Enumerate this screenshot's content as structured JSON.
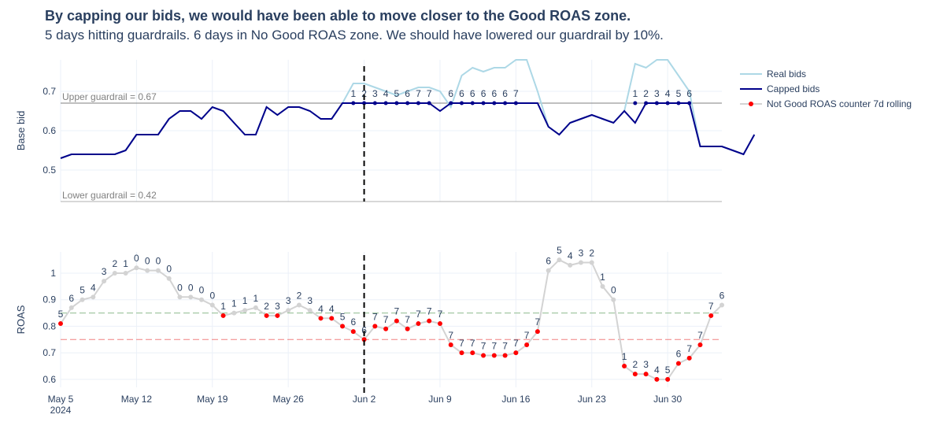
{
  "title": "By capping our bids, we would have been able to move closer to the Good ROAS zone.",
  "subtitle": "5 days hitting guardrails. 6 days in No Good ROAS zone. We should have lowered our guardrail by 10%.",
  "colors": {
    "real": "#add8e6",
    "capped": "#00008b",
    "roas_line": "#d3d3d3",
    "counter_dot": "#ff0000",
    "good_line": "#8fbc8f",
    "bad_line": "#f08080",
    "guard_line": "#808080",
    "grid": "#ebf0f8",
    "vline": "#000000"
  },
  "legend": [
    {
      "label": "Real bids",
      "kind": "real"
    },
    {
      "label": "Capped bids",
      "kind": "capped"
    },
    {
      "label": "Not Good ROAS counter 7d rolling",
      "kind": "roas"
    }
  ],
  "chart_data": [
    {
      "type": "line",
      "ylabel": "Base bid",
      "ylim": [
        0.42,
        0.78
      ],
      "yticks": [
        0.5,
        0.6,
        0.7
      ],
      "ytick_labels": [
        "0.5",
        "0.6",
        "0.7"
      ],
      "upper_guardrail": {
        "value": 0.67,
        "label": "Upper guardrail = 0.67"
      },
      "lower_guardrail": {
        "value": 0.42,
        "label": "Lower guardrail = 0.42"
      },
      "start_date": "2024-05-05",
      "series": [
        {
          "name": "Real bids",
          "values": [
            0.53,
            0.54,
            0.54,
            0.54,
            0.54,
            0.54,
            0.55,
            0.59,
            0.59,
            0.59,
            0.63,
            0.65,
            0.65,
            0.63,
            0.66,
            0.65,
            0.62,
            0.59,
            0.59,
            0.66,
            0.64,
            0.66,
            0.66,
            0.65,
            0.63,
            0.63,
            0.67,
            0.72,
            0.72,
            0.71,
            0.7,
            0.69,
            0.7,
            0.71,
            0.71,
            0.7,
            0.66,
            0.74,
            0.76,
            0.75,
            0.76,
            0.76,
            0.78,
            0.78,
            0.7,
            0.61,
            0.59,
            0.62,
            0.63,
            0.64,
            0.63,
            0.62,
            0.65,
            0.77,
            0.76,
            0.78,
            0.78,
            0.74,
            0.7,
            0.56,
            0.56,
            0.56,
            0.55,
            0.54,
            0.59
          ]
        },
        {
          "name": "Capped bids",
          "values": [
            0.53,
            0.54,
            0.54,
            0.54,
            0.54,
            0.54,
            0.55,
            0.59,
            0.59,
            0.59,
            0.63,
            0.65,
            0.65,
            0.63,
            0.66,
            0.65,
            0.62,
            0.59,
            0.59,
            0.66,
            0.64,
            0.66,
            0.66,
            0.65,
            0.63,
            0.63,
            0.67,
            0.67,
            0.67,
            0.67,
            0.67,
            0.67,
            0.67,
            0.67,
            0.67,
            0.65,
            0.67,
            0.67,
            0.67,
            0.67,
            0.67,
            0.67,
            0.67,
            0.67,
            0.67,
            0.61,
            0.59,
            0.62,
            0.63,
            0.64,
            0.63,
            0.62,
            0.65,
            0.62,
            0.67,
            0.67,
            0.67,
            0.67,
            0.67,
            0.56,
            0.56,
            0.56,
            0.55,
            0.54,
            0.59
          ]
        }
      ],
      "hit_days": [
        27,
        28,
        29,
        30,
        31,
        32,
        33,
        34,
        36,
        37,
        38,
        39,
        40,
        41,
        42,
        53,
        54,
        55,
        56,
        57,
        58
      ],
      "hit_labels": [
        "1",
        "2",
        "3",
        "4",
        "5",
        "6",
        "7",
        "7",
        "6",
        "6",
        "6",
        "6",
        "6",
        "6",
        "7",
        "1",
        "2",
        "3",
        "4",
        "5",
        "6"
      ]
    },
    {
      "type": "line",
      "ylabel": "ROAS",
      "ylim": [
        0.57,
        1.08
      ],
      "yticks": [
        0.6,
        0.7,
        0.8,
        0.9,
        1.0
      ],
      "ytick_labels": [
        "0.6",
        "0.7",
        "0.8",
        "0.9",
        "1"
      ],
      "good_threshold": 0.85,
      "bad_threshold": 0.75,
      "x_tick_labels": [
        "May 5",
        "May 12",
        "May 19",
        "May 26",
        "Jun 2",
        "Jun 9",
        "Jun 16",
        "Jun 23",
        "Jun 30"
      ],
      "x_year_label": "2024",
      "vline_day": 28,
      "values": [
        0.81,
        0.87,
        0.9,
        0.91,
        0.97,
        1.0,
        1.0,
        1.02,
        1.01,
        1.01,
        0.98,
        0.91,
        0.91,
        0.9,
        0.88,
        0.84,
        0.85,
        0.86,
        0.87,
        0.84,
        0.84,
        0.86,
        0.88,
        0.86,
        0.83,
        0.83,
        0.8,
        0.78,
        0.75,
        0.8,
        0.79,
        0.82,
        0.79,
        0.81,
        0.82,
        0.81,
        0.73,
        0.7,
        0.7,
        0.69,
        0.69,
        0.69,
        0.7,
        0.73,
        0.78,
        1.01,
        1.05,
        1.03,
        1.04,
        1.04,
        0.95,
        0.9,
        0.65,
        0.62,
        0.62,
        0.6,
        0.6,
        0.66,
        0.68,
        0.73,
        0.84,
        0.88
      ],
      "counter_labels": [
        "5",
        "6",
        "5",
        "4",
        "3",
        "2",
        "1",
        "0",
        "0",
        "0",
        "0",
        "0",
        "0",
        "0",
        "0",
        "1",
        "1",
        "1",
        "1",
        "2",
        "3",
        "3",
        "2",
        "3",
        "4",
        "4",
        "5",
        "6",
        "6",
        "7",
        "7",
        "7",
        "7",
        "7",
        "7",
        "7",
        "7",
        "7",
        "7",
        "7",
        "7",
        "7",
        "7",
        "7",
        "7",
        "6",
        "5",
        "4",
        "3",
        "2",
        "1",
        "0",
        "1",
        "2",
        "3",
        "4",
        "5",
        "6",
        "7",
        "7",
        "7",
        "6"
      ],
      "counter_days": [
        0,
        15,
        19,
        20,
        24,
        25,
        26,
        27,
        28,
        29,
        30,
        31,
        32,
        33,
        34,
        35,
        36,
        37,
        38,
        39,
        40,
        41,
        42,
        43,
        44,
        52,
        53,
        54,
        55,
        56,
        57,
        58,
        59,
        60
      ]
    }
  ]
}
